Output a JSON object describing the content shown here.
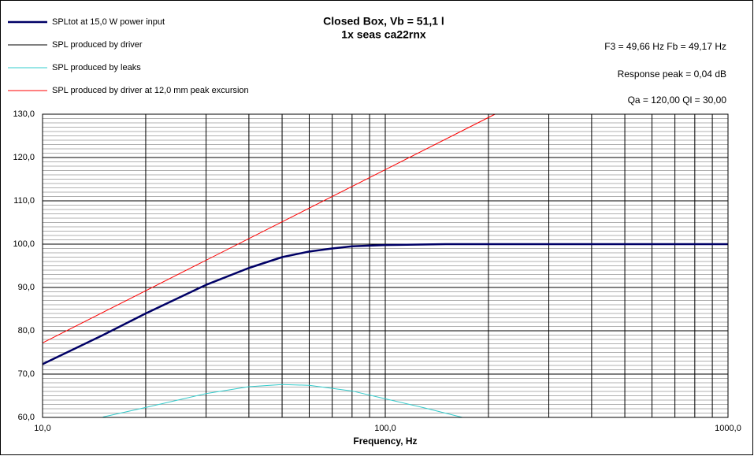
{
  "chart_data": {
    "type": "line",
    "title": "Closed Box, Vb = 51,1 l",
    "subtitle": "1x seas ca22rnx",
    "annotations": [
      "F3 = 49,66 Hz  Fb = 49,17 Hz",
      "Response peak = 0,04 dB",
      "Qa = 120,00  Ql = 30,00"
    ],
    "x_label": "Frequency, Hz",
    "x_log": true,
    "grid": true,
    "legend": "top-left",
    "xlim": [
      10,
      1000
    ],
    "xticks": [
      {
        "value": 10,
        "label": "10,0"
      },
      {
        "value": 100,
        "label": "100,0"
      },
      {
        "value": 1000,
        "label": "1000,0"
      }
    ],
    "ylim": [
      60,
      130
    ],
    "yticks": [
      {
        "value": 60,
        "label": "60,0"
      },
      {
        "value": 70,
        "label": "70,0"
      },
      {
        "value": 80,
        "label": "80,0"
      },
      {
        "value": 90,
        "label": "90,0"
      },
      {
        "value": 100,
        "label": "100,0"
      },
      {
        "value": 110,
        "label": "110,0"
      },
      {
        "value": 120,
        "label": "120,0"
      },
      {
        "value": 130,
        "label": "130,0"
      }
    ],
    "series": [
      {
        "name": "SPLtot at 15,0 W power input",
        "color": "#000066",
        "width": 2.5,
        "x": [
          10,
          15,
          20,
          30,
          40,
          50,
          60,
          70,
          80,
          100,
          150,
          200,
          500,
          1000
        ],
        "values": [
          72.3,
          79,
          84,
          90.6,
          94.5,
          97,
          98.3,
          99,
          99.5,
          99.8,
          100,
          100,
          100,
          100
        ]
      },
      {
        "name": "SPL produced by driver",
        "color": "#000000",
        "width": 1,
        "x": [
          10,
          15,
          20,
          30,
          40,
          50,
          60,
          70,
          80,
          100,
          150,
          200,
          500,
          1000
        ],
        "values": [
          72.3,
          79,
          84,
          90.6,
          94.5,
          97,
          98.3,
          99,
          99.5,
          99.8,
          100,
          100,
          100,
          100
        ]
      },
      {
        "name": "SPL produced by leaks",
        "color": "#33cccc",
        "width": 1,
        "x": [
          15,
          20,
          30,
          40,
          50,
          60,
          80,
          100,
          130,
          168
        ],
        "values": [
          60.1,
          62.3,
          65.5,
          67.1,
          67.6,
          67.4,
          66.1,
          64.3,
          62.2,
          60
        ]
      },
      {
        "name": "SPL produced by driver at 12,0 mm peak excursion",
        "color": "#ff0000",
        "width": 1,
        "x": [
          10,
          100,
          209
        ],
        "values": [
          77.2,
          117.2,
          130
        ]
      }
    ]
  }
}
